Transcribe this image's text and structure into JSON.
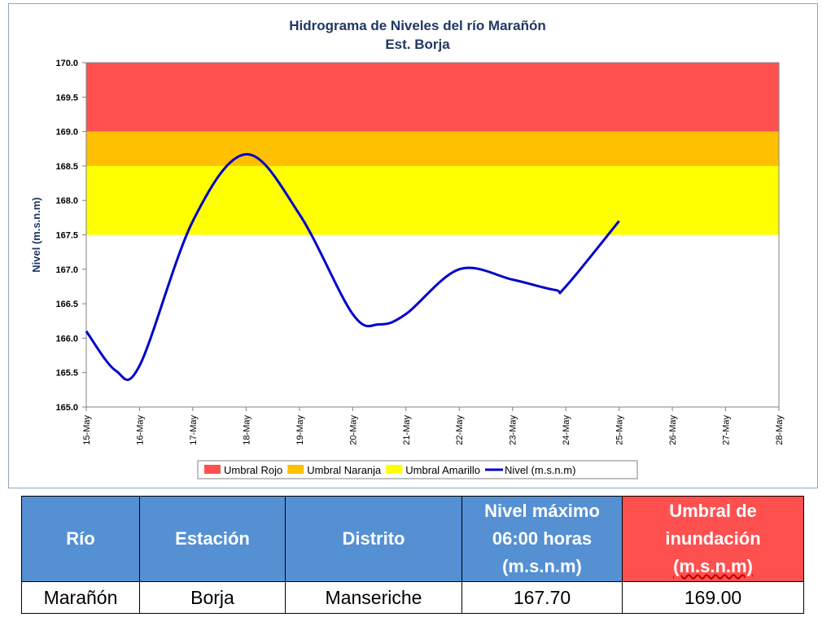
{
  "colors": {
    "rojo": "#ff5050",
    "naranja": "#ffc000",
    "amarillo": "#ffff00",
    "nivel": "#0000cc",
    "header_blue": "#5590d3",
    "header_red": "#ff5050"
  },
  "chart_data": {
    "type": "line",
    "title": "Hidrograma de Niveles del río Marañón",
    "subtitle": "Est. Borja",
    "ylabel": "Nivel (m.s.n.m)",
    "xlabel": "",
    "ylim": [
      165.0,
      170.0
    ],
    "yticks": [
      "165.0",
      "165.5",
      "166.0",
      "166.5",
      "167.0",
      "167.5",
      "168.0",
      "168.5",
      "169.0",
      "169.5",
      "170.0"
    ],
    "categories": [
      "15-May",
      "16-May",
      "17-May",
      "18-May",
      "19-May",
      "20-May",
      "21-May",
      "22-May",
      "23-May",
      "24-May",
      "25-May",
      "26-May",
      "27-May",
      "28-May"
    ],
    "bands": [
      {
        "name": "Umbral Rojo",
        "from": 169.0,
        "to": 170.0,
        "color": "#ff5050"
      },
      {
        "name": "Umbral Naranja",
        "from": 168.5,
        "to": 169.0,
        "color": "#ffc000"
      },
      {
        "name": "Umbral Amarillo",
        "from": 167.5,
        "to": 168.5,
        "color": "#ffff00"
      }
    ],
    "series": [
      {
        "name": "Nivel (m.s.n.m)",
        "color": "#0000cc",
        "x": [
          0,
          0.55,
          1,
          2,
          3,
          4,
          5,
          5.5,
          6,
          7,
          8,
          8.8,
          9,
          10
        ],
        "values": [
          166.1,
          165.53,
          165.6,
          167.7,
          168.67,
          167.8,
          166.35,
          166.2,
          166.35,
          167.0,
          166.85,
          166.7,
          166.75,
          167.7
        ]
      }
    ],
    "grid": false,
    "legend": "bottom"
  },
  "legend": [
    {
      "label": "Umbral Rojo",
      "kind": "box",
      "color": "#ff5050"
    },
    {
      "label": "Umbral Naranja",
      "kind": "box",
      "color": "#ffc000"
    },
    {
      "label": "Umbral Amarillo",
      "kind": "box",
      "color": "#ffff00"
    },
    {
      "label": "Nivel (m.s.n.m)",
      "kind": "line",
      "color": "#0000cc"
    }
  ],
  "table": {
    "headers": {
      "rio": "Río",
      "estacion": "Estación",
      "distrito": "Distrito",
      "nivel_l1": "Nivel máximo",
      "nivel_l2": "06:00 horas",
      "nivel_l3": "(m.s.n.m)",
      "umbral_l1": "Umbral de",
      "umbral_l2": "inundación",
      "umbral_l3": "(m.s.n.m)"
    },
    "row": {
      "rio": "Marañón",
      "estacion": "Borja",
      "distrito": "Manseriche",
      "nivel": "167.70",
      "umbral": "169.00"
    }
  }
}
